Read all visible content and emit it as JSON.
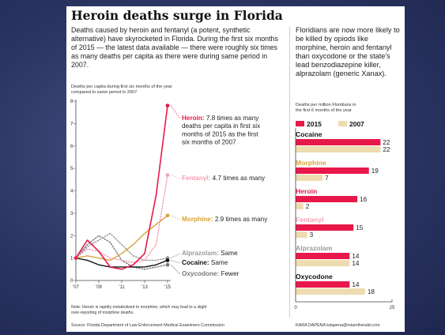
{
  "headline": "Heroin deaths surge in Florida",
  "deck": "Deaths caused by heroin and fentanyl (a potent, synthetic alternative) have skyrocketed in Florida. During the first six months of 2015 — the latest data available — there were roughly six times as many deaths per capita as there were during same period in 2007.",
  "side_text": "Floridians are now more likely to be killed by opiods like morphine, heroin and fentanyl than oxycodone or the state's lead benzodiazepine killer, alprazolam (generic Xanax).",
  "line_caption": [
    "Deaths per capita during first six months of the year",
    "compared to same period in 2007"
  ],
  "bar_caption": [
    "Deaths per million Floridians in",
    "the first 6 months of the year"
  ],
  "footnote": [
    "Note: Heroin is rapidly metabolized to morphine, which may lead to a slight",
    "over-reporting of morphine deaths."
  ],
  "source": "Source: Florida Department of Law Enforcement Medical Examiners Commission",
  "credit": "KARA DAPENA kdapena@miamiherald.com",
  "colors": {
    "heroin": "#e8184a",
    "fentanyl": "#f2a0b5",
    "morphine": "#d6a43a",
    "alprazolam": "#9a9a9a",
    "cocaine": "#111111",
    "oxycodone": "#777777",
    "bar_2015": "#e8184a",
    "bar_2007": "#eedcb0",
    "slide_background": "#2c3563"
  },
  "annotations": {
    "heroin": {
      "name": "Heroin:",
      "lines": [
        " 7.8 times as many",
        "deaths per capita in first six",
        "months of 2015 as the first",
        "six months of 2007"
      ]
    },
    "fentanyl": {
      "name": "Fentanyl:",
      "text": " 4.7 times as many"
    },
    "morphine": {
      "name": "Morphine:",
      "text": " 2.9 times as many"
    },
    "alprazolam": {
      "name": "Alprazolam:",
      "text": " Same"
    },
    "cocaine": {
      "name": "Cocaine:",
      "text": " Same"
    },
    "oxycodone": {
      "name": "Oxycodone:",
      "text": " Fewer"
    }
  },
  "chart_data": [
    {
      "type": "line",
      "x": [
        2007,
        2008,
        2009,
        2010,
        2011,
        2012,
        2013,
        2014,
        2015
      ],
      "xticks": [
        "'07",
        "'09",
        "'11",
        "'13",
        "'15"
      ],
      "ylim": [
        0,
        8
      ],
      "yticks": [
        "0",
        "1",
        "2",
        "3",
        "4",
        "5",
        "6",
        "7",
        "8"
      ],
      "series": [
        {
          "name": "Heroin",
          "key": "heroin",
          "style": "solid",
          "values": [
            1.0,
            1.8,
            1.3,
            0.6,
            0.5,
            0.7,
            1.2,
            3.8,
            7.8
          ]
        },
        {
          "name": "Fentanyl",
          "key": "fentanyl",
          "style": "dotted",
          "values": [
            1.0,
            1.4,
            1.3,
            1.0,
            0.9,
            0.8,
            0.9,
            1.6,
            4.7
          ]
        },
        {
          "name": "Morphine",
          "key": "morphine",
          "style": "solid",
          "values": [
            1.0,
            1.1,
            1.0,
            0.9,
            1.2,
            1.6,
            2.1,
            2.5,
            2.9
          ]
        },
        {
          "name": "Alprazolam",
          "key": "alprazolam",
          "style": "dotted",
          "values": [
            1.0,
            1.5,
            1.8,
            2.1,
            1.6,
            1.1,
            0.9,
            0.9,
            1.0
          ]
        },
        {
          "name": "Cocaine",
          "key": "cocaine",
          "style": "solid",
          "values": [
            1.0,
            0.9,
            0.7,
            0.6,
            0.6,
            0.6,
            0.6,
            0.7,
            0.9
          ]
        },
        {
          "name": "Oxycodone",
          "key": "oxycodone",
          "style": "dotted",
          "values": [
            1.0,
            1.6,
            2.0,
            1.7,
            0.9,
            0.6,
            0.5,
            0.6,
            0.7
          ]
        }
      ]
    },
    {
      "type": "bar",
      "orientation": "horizontal",
      "xlim": [
        0,
        25
      ],
      "xticks": [
        "0",
        "25"
      ],
      "series": [
        {
          "name": "2015"
        },
        {
          "name": "2007"
        }
      ],
      "categories": [
        {
          "name": "Cocaine",
          "key": "cocaine",
          "v2015": 22,
          "v2007": 22
        },
        {
          "name": "Morphine",
          "key": "morphine",
          "v2015": 19,
          "v2007": 7
        },
        {
          "name": "Heroin",
          "key": "heroin",
          "v2015": 16,
          "v2007": 2
        },
        {
          "name": "Fentanyl",
          "key": "fentanyl",
          "v2015": 15,
          "v2007": 3
        },
        {
          "name": "Alprazolam",
          "key": "alprazolam",
          "v2015": 14,
          "v2007": 14
        },
        {
          "name": "Oxycodone",
          "key": "oxycodone",
          "v2015": 14,
          "v2007": 18
        }
      ]
    }
  ]
}
